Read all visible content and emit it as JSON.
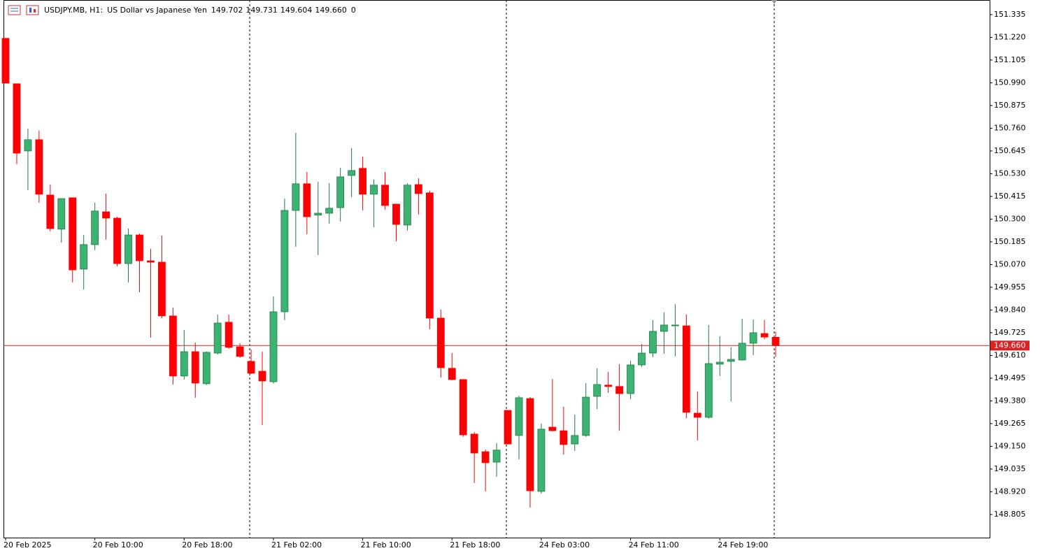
{
  "header": {
    "symbol": "USDJPY.MB, H1:",
    "description": "US Dollar vs Japanese Yen",
    "quote": [
      "149.702",
      "149.731",
      "149.604",
      "149.660",
      "0"
    ]
  },
  "chart_data": {
    "type": "candlestick",
    "categories": [
      "20 Feb 2025",
      null,
      null,
      null,
      null,
      null,
      null,
      null,
      "20 Feb 10:00",
      null,
      null,
      null,
      null,
      null,
      null,
      null,
      "20 Feb 18:00",
      null,
      null,
      null,
      null,
      null,
      null,
      null,
      "21 Feb 02:00",
      null,
      null,
      null,
      null,
      null,
      null,
      null,
      "21 Feb 10:00",
      null,
      null,
      null,
      null,
      null,
      null,
      null,
      "21 Feb 18:00",
      null,
      null,
      null,
      null,
      null,
      null,
      null,
      "24 Feb 03:00",
      null,
      null,
      null,
      null,
      null,
      null,
      null,
      "24 Feb 11:00",
      null,
      null,
      null,
      null,
      null,
      null,
      null,
      "24 Feb 19:00",
      null,
      null,
      null,
      null,
      null
    ],
    "open": [
      151.215,
      150.985,
      150.645,
      150.702,
      150.422,
      150.249,
      150.408,
      150.047,
      150.171,
      150.337,
      150.305,
      150.075,
      150.22,
      150.089,
      150.082,
      149.81,
      149.506,
      149.629,
      149.467,
      149.622,
      149.778,
      149.654,
      149.58,
      149.53,
      149.477,
      149.831,
      150.344,
      150.479,
      150.32,
      150.33,
      150.358,
      150.521,
      150.557,
      150.426,
      150.472,
      150.376,
      150.27,
      150.475,
      150.433,
      149.799,
      149.545,
      149.488,
      149.212,
      149.123,
      149.07,
      149.332,
      149.205,
      149.392,
      148.922,
      149.247,
      149.229,
      149.162,
      149.205,
      149.403,
      149.46,
      149.453,
      149.417,
      149.562,
      149.622,
      149.732,
      149.76,
      149.76,
      149.318,
      149.297,
      149.566,
      149.58,
      149.587,
      149.672,
      149.721,
      149.702
    ],
    "high": [
      151.215,
      150.985,
      150.758,
      150.748,
      150.475,
      150.404,
      150.408,
      150.22,
      150.383,
      150.429,
      150.312,
      150.252,
      150.227,
      150.15,
      150.217,
      149.852,
      149.739,
      149.675,
      149.63,
      149.817,
      149.817,
      149.672,
      149.64,
      149.629,
      149.909,
      150.404,
      150.737,
      150.539,
      150.489,
      150.482,
      150.56,
      150.659,
      150.617,
      150.5,
      150.539,
      150.376,
      150.482,
      150.507,
      150.443,
      149.842,
      149.622,
      149.488,
      149.222,
      149.134,
      149.166,
      149.332,
      149.406,
      149.399,
      149.265,
      149.491,
      149.35,
      149.311,
      149.47,
      149.545,
      149.527,
      149.566,
      149.583,
      149.668,
      149.789,
      149.828,
      149.87,
      149.817,
      149.428,
      149.764,
      149.707,
      149.651,
      149.796,
      149.792,
      149.789,
      149.731
    ],
    "low": [
      150.988,
      150.578,
      150.447,
      150.383,
      150.238,
      150.181,
      149.98,
      149.944,
      150.143,
      150.196,
      150.061,
      149.98,
      149.93,
      149.7,
      149.799,
      149.463,
      149.488,
      149.396,
      149.46,
      149.615,
      149.644,
      149.598,
      149.516,
      149.258,
      149.467,
      149.789,
      150.16,
      150.224,
      150.118,
      150.277,
      150.288,
      150.411,
      150.344,
      150.259,
      150.348,
      150.188,
      150.242,
      150.323,
      149.743,
      149.498,
      149.484,
      149.198,
      148.964,
      148.922,
      148.996,
      149.16,
      149.084,
      148.84,
      148.911,
      149.226,
      149.109,
      149.127,
      149.198,
      149.339,
      149.421,
      149.229,
      149.389,
      149.552,
      149.601,
      149.619,
      149.605,
      149.293,
      149.18,
      149.29,
      149.506,
      149.378,
      149.583,
      149.612,
      149.693,
      149.604
    ],
    "close": [
      150.988,
      150.634,
      150.702,
      150.426,
      150.252,
      150.404,
      150.043,
      150.171,
      150.341,
      150.305,
      150.075,
      150.22,
      150.089,
      150.082,
      149.81,
      149.506,
      149.629,
      149.47,
      149.626,
      149.774,
      149.651,
      149.605,
      149.52,
      149.481,
      149.831,
      150.344,
      150.479,
      150.312,
      150.33,
      150.355,
      150.514,
      150.546,
      150.426,
      150.472,
      150.369,
      150.273,
      150.472,
      150.429,
      149.799,
      149.548,
      149.488,
      149.208,
      149.116,
      149.067,
      149.131,
      149.162,
      149.396,
      148.925,
      149.237,
      149.229,
      149.159,
      149.205,
      149.399,
      149.463,
      149.453,
      149.417,
      149.562,
      149.622,
      149.732,
      149.764,
      149.764,
      149.322,
      149.297,
      149.569,
      149.576,
      149.59,
      149.672,
      149.725,
      149.703,
      149.66
    ],
    "up_color": "#3cb371",
    "up_border": "#1f7a45",
    "down_color": "#ff0000",
    "current_price": {
      "value": 149.66,
      "label": "149.660"
    },
    "price_line_color": "#d22",
    "ylim": [
      148.688,
      151.409
    ],
    "yticks": [
      151.335,
      {
        "value": 151.22,
        "label": "151.220"
      },
      151.105,
      {
        "value": 150.99,
        "label": "150.990"
      },
      150.875,
      {
        "value": 150.76,
        "label": "150.760"
      },
      150.645,
      {
        "value": 150.53,
        "label": "150.530"
      },
      150.415,
      {
        "value": 150.3,
        "label": "150.300"
      },
      150.185,
      {
        "value": 150.07,
        "label": "150.070"
      },
      149.955,
      {
        "value": 149.84,
        "label": "149.840"
      },
      149.725,
      {
        "value": 149.61,
        "label": "149.610"
      },
      149.495,
      {
        "value": 149.38,
        "label": "149.380"
      },
      149.265,
      {
        "value": 149.15,
        "label": "149.150"
      },
      149.035,
      {
        "value": 148.92,
        "label": "148.920"
      },
      148.805
    ]
  }
}
